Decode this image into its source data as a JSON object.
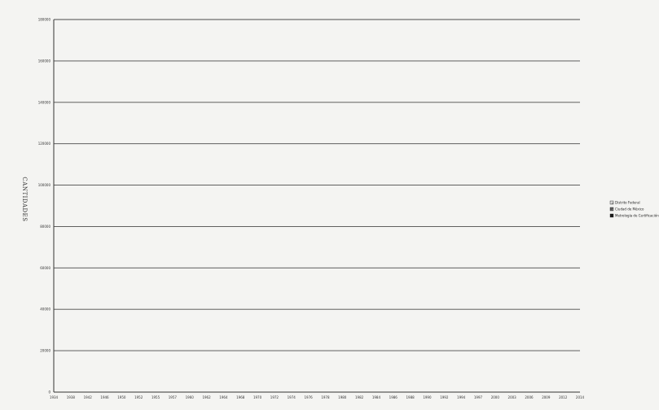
{
  "chart_data": {
    "type": "area",
    "stacked": true,
    "title": "",
    "xlabel": "",
    "ylabel": "CANTIDADES",
    "ylim": [
      0,
      180000
    ],
    "yticks": [
      0,
      20000,
      40000,
      60000,
      80000,
      100000,
      120000,
      140000,
      160000,
      180000
    ],
    "grid": true,
    "legend_position": "right",
    "x_tick_labels": [
      "1934",
      "1938",
      "1942",
      "1946",
      "1950",
      "1952",
      "1955",
      "1957",
      "1960",
      "1962",
      "1964",
      "1968",
      "1970",
      "1972",
      "1974",
      "1976",
      "1978",
      "1980",
      "1982",
      "1984",
      "1986",
      "1988",
      "1990",
      "1992",
      "1994",
      "1997",
      "2000",
      "2003",
      "2006",
      "2009",
      "2012",
      "2014"
    ],
    "x": [
      1934,
      1935,
      1936,
      1937,
      1938,
      1939,
      1940,
      1941,
      1942,
      1943,
      1944,
      1945,
      1946,
      1947,
      1948,
      1949,
      1950,
      1951,
      1952,
      1953,
      1954,
      1955,
      1956,
      1957,
      1958,
      1959,
      1960,
      1961,
      1962,
      1963,
      1964,
      1965,
      1966,
      1967,
      1968,
      1969,
      1970,
      1971,
      1972,
      1973,
      1974,
      1975,
      1976,
      1977,
      1978,
      1979,
      1980,
      1981,
      1982,
      1983,
      1984,
      1985,
      1986,
      1987,
      1988,
      1989,
      1990,
      1991,
      1992,
      1993,
      1994,
      1995,
      1996,
      1997,
      1998,
      1999,
      2000,
      2001,
      2002,
      2003,
      2004,
      2005,
      2006,
      2007,
      2008,
      2009,
      2010,
      2011,
      2012,
      2013,
      2014
    ],
    "series": [
      {
        "name": "Distrito Federal",
        "color": "#dcdcdc",
        "values": [
          0,
          0,
          0,
          0,
          0,
          0,
          0,
          0,
          0,
          0,
          0,
          0,
          0,
          0,
          0,
          0,
          0,
          0,
          0,
          0,
          0,
          0,
          0,
          0,
          0,
          0,
          0,
          0,
          0,
          0,
          0,
          0,
          0,
          0,
          0,
          0,
          0,
          0,
          0,
          0,
          0,
          0,
          0,
          0,
          0,
          0,
          0,
          0,
          0,
          0,
          0,
          0,
          0,
          0,
          0,
          0,
          0,
          0,
          0,
          0,
          0,
          0,
          0,
          0,
          0,
          0,
          0,
          0,
          0,
          0,
          0,
          0,
          0,
          0,
          0,
          0,
          0,
          0,
          0,
          0,
          0
        ]
      },
      {
        "name": "Ciudad de México",
        "color": "#b4b4b4",
        "values": [
          0,
          0,
          0,
          0,
          0,
          0,
          0,
          0,
          0,
          0,
          0,
          0,
          0,
          0,
          0,
          0,
          0,
          0,
          0,
          0,
          0,
          0,
          0,
          0,
          0,
          0,
          0,
          0,
          0,
          0,
          0,
          0,
          0,
          0,
          0,
          0,
          0,
          0,
          0,
          0,
          0,
          0,
          0,
          0,
          0,
          0,
          0,
          0,
          0,
          0,
          0,
          0,
          0,
          0,
          0,
          0,
          0,
          0,
          0,
          0,
          0,
          0,
          0,
          0,
          0,
          0,
          0,
          0,
          0,
          0,
          0,
          0,
          0,
          0,
          0,
          0,
          0,
          0,
          0,
          0,
          0
        ]
      },
      {
        "name": "Metrología de Certificación",
        "color": "#5a5a5a",
        "values": [
          0,
          0,
          0,
          0,
          0,
          0,
          0,
          0,
          0,
          0,
          0,
          0,
          0,
          0,
          0,
          0,
          0,
          0,
          0,
          0,
          0,
          0,
          0,
          0,
          0,
          0,
          0,
          0,
          0,
          0,
          0,
          0,
          0,
          0,
          0,
          0,
          0,
          0,
          0,
          0,
          0,
          0,
          0,
          0,
          0,
          0,
          0,
          0,
          0,
          0,
          0,
          0,
          0,
          0,
          0,
          0,
          0,
          0,
          0,
          0,
          0,
          0,
          0,
          0,
          0,
          0,
          0,
          0,
          0,
          0,
          0,
          0,
          0,
          0,
          0,
          0,
          0,
          0,
          0,
          0,
          0
        ]
      }
    ]
  }
}
